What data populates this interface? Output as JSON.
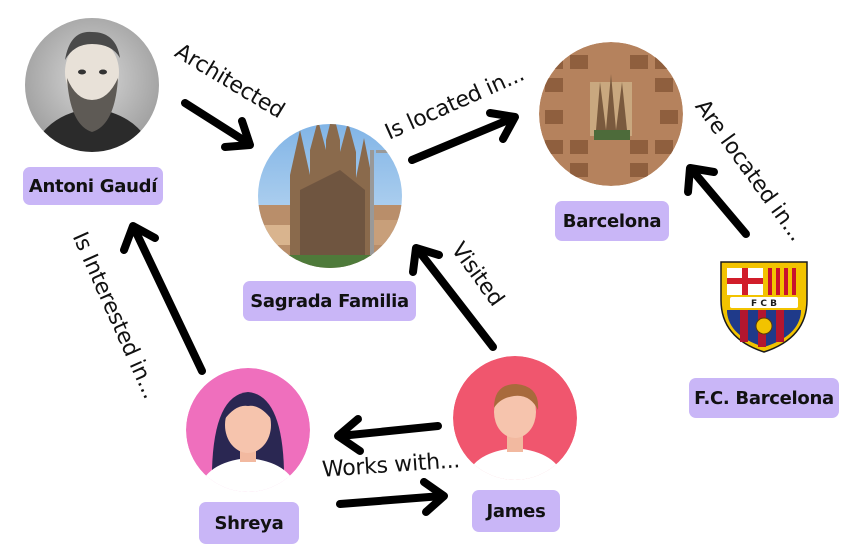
{
  "nodes": {
    "gaudi": {
      "label": "Antoni Gaudí",
      "image": "portrait-photo"
    },
    "sagrada": {
      "label": "Sagrada Familia",
      "image": "basilica-photo"
    },
    "barcelona": {
      "label": "Barcelona",
      "image": "city-aerial-photo"
    },
    "fcb": {
      "label": "F.C. Barcelona",
      "image": "club-crest",
      "crest_text": "FCB"
    },
    "shreya": {
      "label": "Shreya",
      "image": "female-avatar"
    },
    "james": {
      "label": "James",
      "image": "male-avatar"
    }
  },
  "edges": {
    "architected": "Architected",
    "located_in": "Is located in...",
    "are_located_in": "Are located in...",
    "interested_in": "Is Interested in...",
    "visited": "Visited",
    "works_with": "Works with..."
  },
  "colors": {
    "label_bg": "#c9b6f7",
    "shreya_bg": "#ef6fbd",
    "james_bg": "#f0566e",
    "arrow": "#000000"
  }
}
